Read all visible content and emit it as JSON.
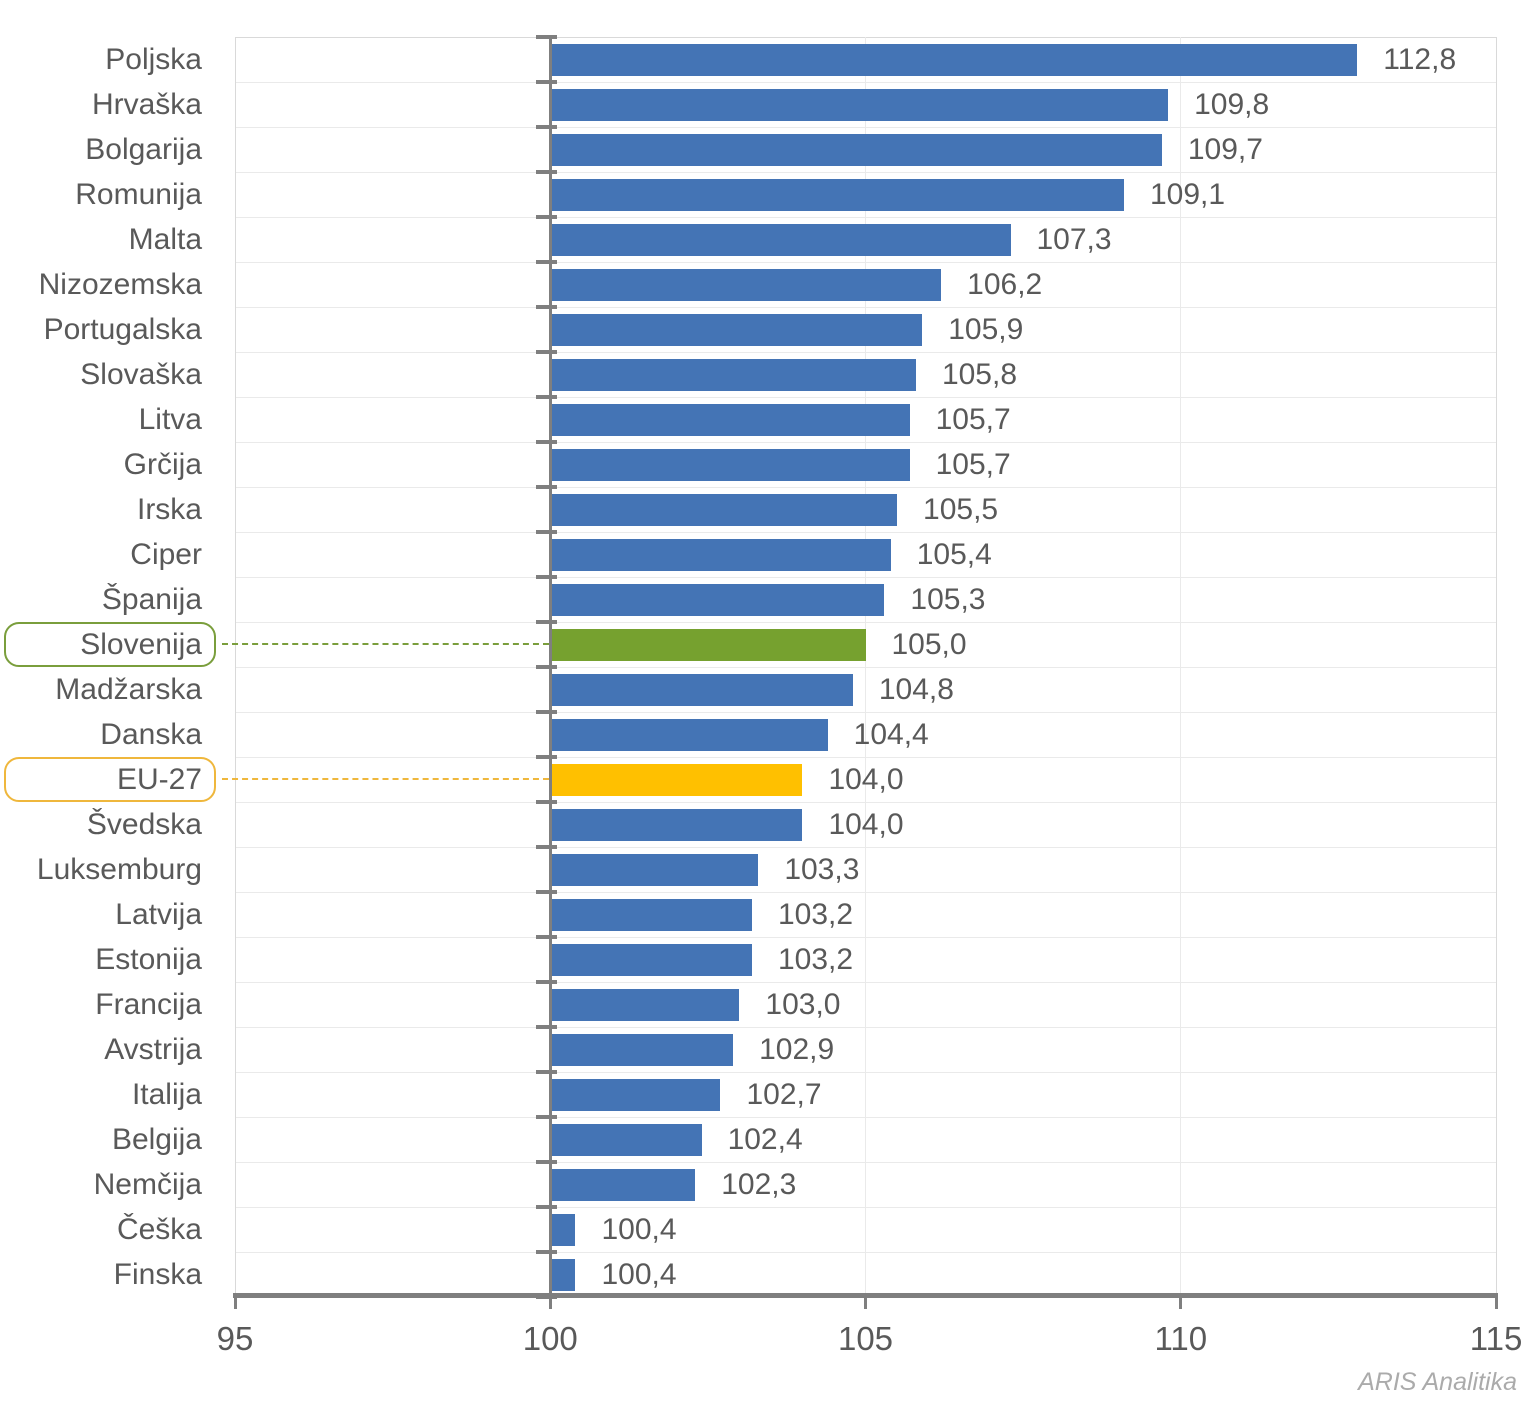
{
  "chart_data": {
    "type": "bar",
    "orientation": "horizontal",
    "title": "",
    "categories": [
      "Poljska",
      "Hrvaška",
      "Bolgarija",
      "Romunija",
      "Malta",
      "Nizozemska",
      "Portugalska",
      "Slovaška",
      "Litva",
      "Grčija",
      "Irska",
      "Ciper",
      "Španija",
      "Slovenija",
      "Madžarska",
      "Danska",
      "EU-27",
      "Švedska",
      "Luksemburg",
      "Latvija",
      "Estonija",
      "Francija",
      "Avstrija",
      "Italija",
      "Belgija",
      "Nemčija",
      "Češka",
      "Finska"
    ],
    "values": [
      112.8,
      109.8,
      109.7,
      109.1,
      107.3,
      106.2,
      105.9,
      105.8,
      105.7,
      105.7,
      105.5,
      105.4,
      105.3,
      105.0,
      104.8,
      104.4,
      104.0,
      104.0,
      103.3,
      103.2,
      103.2,
      103.0,
      102.9,
      102.7,
      102.4,
      102.3,
      100.4,
      100.4
    ],
    "value_labels": [
      "112,8",
      "109,8",
      "109,7",
      "109,1",
      "107,3",
      "106,2",
      "105,9",
      "105,8",
      "105,7",
      "105,7",
      "105,5",
      "105,4",
      "105,3",
      "105,0",
      "104,8",
      "104,4",
      "104,0",
      "104,0",
      "103,3",
      "103,2",
      "103,2",
      "103,0",
      "102,9",
      "102,7",
      "102,4",
      "102,3",
      "100,4",
      "100,4"
    ],
    "bar_base": 100,
    "xlim": [
      95,
      115
    ],
    "x_ticks": [
      "95",
      "100",
      "105",
      "110",
      "115"
    ],
    "x_tick_values": [
      95,
      100,
      105,
      110,
      115
    ],
    "grid": true,
    "legend": "none",
    "colors": {
      "default_bar": "#4474B5",
      "text": "#595959",
      "axis": "#7F7F7F",
      "gridline": "#EAEAEA",
      "plot_border": "#D9D9D9"
    },
    "highlights": [
      {
        "category": "Slovenija",
        "index": 13,
        "bar_color": "#76A12F",
        "box_border_color": "#7A9E3C",
        "connector_color": "#7A9E3C"
      },
      {
        "category": "EU-27",
        "index": 16,
        "bar_color": "#FFC000",
        "box_border_color": "#EFB73C",
        "connector_color": "#EFB73C"
      }
    ]
  },
  "watermark": "ARIS Analitika"
}
